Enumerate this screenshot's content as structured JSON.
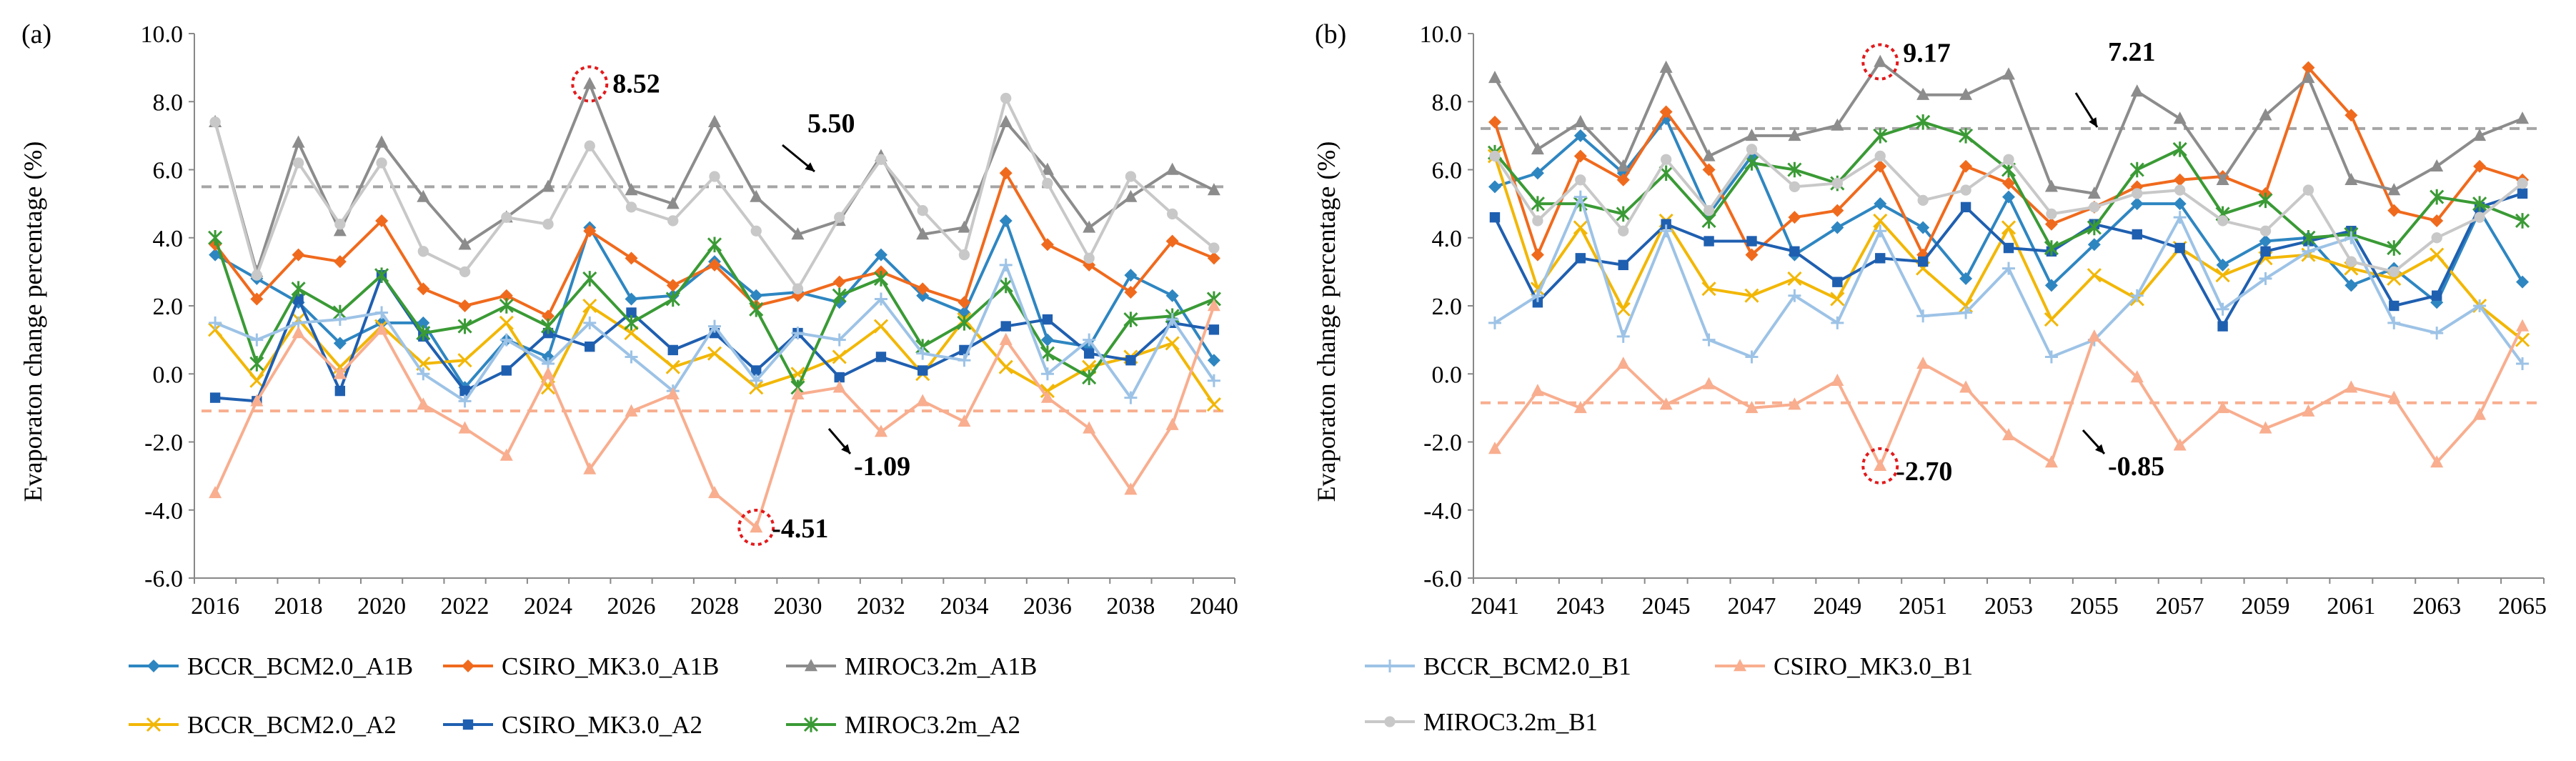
{
  "colors": {
    "BCCR_BCM2.0_A1B": "#2E86C1",
    "CSIRO_MK3.0_A1B": "#F06A1D",
    "MIROC3.2m_A1B": "#8C8C8C",
    "BCCR_BCM2.0_A2": "#F2B705",
    "CSIRO_MK3.0_A2": "#1F5FB0",
    "MIROC3.2m_A2": "#3A9A35",
    "BCCR_BCM2.0_B1": "#9DC3E6",
    "CSIRO_MK3.0_B1": "#F8AE8F",
    "MIROC3.2m_B1": "#C8C8C8",
    "ref_gray": "#A6A6A6",
    "ref_orange": "#F8AE8F",
    "highlight": "#E31A1C"
  },
  "legend": {
    "items": [
      "BCCR_BCM2.0_A1B",
      "CSIRO_MK3.0_A1B",
      "MIROC3.2m_A1B",
      "BCCR_BCM2.0_A2",
      "CSIRO_MK3.0_A2",
      "MIROC3.2m_A2"
    ],
    "items_b": [
      "BCCR_BCM2.0_B1",
      "CSIRO_MK3.0_B1",
      "MIROC3.2m_B1"
    ]
  },
  "chart_data": [
    {
      "panel_label": "(a)",
      "type": "line",
      "title": "",
      "xlabel": "",
      "ylabel": "Evaporaton change percentage  (%)",
      "ylim": [
        -6,
        10
      ],
      "yticks": [
        "10.0",
        "8.0",
        "6.0",
        "4.0",
        "2.0",
        "0.0",
        "-2.0",
        "-4.0",
        "-6.0"
      ],
      "ytick_values": [
        10,
        8,
        6,
        4,
        2,
        0,
        -2,
        -4,
        -6
      ],
      "x": [
        2016,
        2017,
        2018,
        2019,
        2020,
        2021,
        2022,
        2023,
        2024,
        2025,
        2026,
        2027,
        2028,
        2029,
        2030,
        2031,
        2032,
        2033,
        2034,
        2035,
        2036,
        2037,
        2038,
        2039,
        2040
      ],
      "xtick_labels": [
        "2016",
        "2018",
        "2020",
        "2022",
        "2024",
        "2026",
        "2028",
        "2030",
        "2032",
        "2034",
        "2036",
        "2038",
        "2040"
      ],
      "series": [
        {
          "name": "BCCR_BCM2.0_A1B",
          "marker": "diamond",
          "values": [
            3.5,
            2.8,
            2.1,
            0.9,
            1.5,
            1.5,
            -0.4,
            1.0,
            0.5,
            4.3,
            2.2,
            2.3,
            3.3,
            2.3,
            2.4,
            2.1,
            3.5,
            2.3,
            1.8,
            4.5,
            1.0,
            0.8,
            2.9,
            2.3,
            0.4
          ]
        },
        {
          "name": "CSIRO_MK3.0_A1B",
          "marker": "diamond",
          "values": [
            3.8,
            2.2,
            3.5,
            3.3,
            4.5,
            2.5,
            2.0,
            2.3,
            1.7,
            4.2,
            3.4,
            2.6,
            3.2,
            2.0,
            2.3,
            2.7,
            3.0,
            2.5,
            2.1,
            5.9,
            3.8,
            3.2,
            2.4,
            3.9,
            3.4
          ]
        },
        {
          "name": "MIROC3.2m_A1B",
          "marker": "triangle",
          "values": [
            7.4,
            3.0,
            6.8,
            4.2,
            6.8,
            5.2,
            3.8,
            4.6,
            5.5,
            8.52,
            5.4,
            5.0,
            7.4,
            5.2,
            4.1,
            4.5,
            6.4,
            4.1,
            4.3,
            7.4,
            6.0,
            4.3,
            5.2,
            6.0,
            5.4
          ]
        },
        {
          "name": "BCCR_BCM2.0_A2",
          "marker": "x",
          "values": [
            1.3,
            -0.2,
            1.6,
            0.2,
            1.4,
            0.3,
            0.4,
            1.5,
            -0.4,
            2.0,
            1.2,
            0.2,
            0.6,
            -0.4,
            0.0,
            0.5,
            1.4,
            0.0,
            1.6,
            0.2,
            -0.5,
            0.2,
            0.5,
            0.9,
            -0.9
          ]
        },
        {
          "name": "CSIRO_MK3.0_A2",
          "marker": "square",
          "values": [
            -0.7,
            -0.8,
            2.2,
            -0.5,
            2.9,
            1.1,
            -0.5,
            0.1,
            1.2,
            0.8,
            1.8,
            0.7,
            1.2,
            0.1,
            1.2,
            -0.1,
            0.5,
            0.1,
            0.7,
            1.4,
            1.6,
            0.6,
            0.4,
            1.5,
            1.3
          ]
        },
        {
          "name": "MIROC3.2m_A2",
          "marker": "star",
          "values": [
            4.0,
            0.3,
            2.5,
            1.8,
            2.9,
            1.2,
            1.4,
            2.0,
            1.4,
            2.8,
            1.5,
            2.2,
            3.8,
            1.9,
            -0.4,
            2.3,
            2.8,
            0.8,
            1.5,
            2.6,
            0.6,
            -0.1,
            1.6,
            1.7,
            2.2
          ]
        },
        {
          "name": "BCCR_BCM2.0_B1",
          "marker": "plus",
          "values": [
            1.5,
            1.0,
            1.5,
            1.6,
            1.8,
            0.0,
            -0.8,
            1.0,
            0.3,
            1.5,
            0.5,
            -0.5,
            1.4,
            -0.2,
            1.2,
            1.0,
            2.2,
            0.6,
            0.4,
            3.2,
            0.0,
            1.0,
            -0.7,
            1.6,
            -0.2
          ]
        },
        {
          "name": "CSIRO_MK3.0_B1",
          "marker": "triangle",
          "values": [
            -3.5,
            -0.8,
            1.2,
            0.0,
            1.3,
            -0.9,
            -1.6,
            -2.4,
            0.0,
            -2.8,
            -1.1,
            -0.6,
            -3.5,
            -4.51,
            -0.6,
            -0.4,
            -1.7,
            -0.8,
            -1.4,
            1.0,
            -0.7,
            -1.6,
            -3.4,
            -1.5,
            2.0
          ]
        },
        {
          "name": "MIROC3.2m_B1",
          "marker": "circle",
          "values": [
            7.4,
            2.9,
            6.2,
            4.4,
            6.2,
            3.6,
            3.0,
            4.6,
            4.4,
            6.7,
            4.9,
            4.5,
            5.8,
            4.2,
            2.5,
            4.6,
            6.3,
            4.8,
            3.5,
            8.1,
            5.6,
            3.4,
            5.8,
            4.7,
            3.7
          ]
        }
      ],
      "ref_lines": [
        {
          "value": 5.5,
          "label": "5.50",
          "color_key": "ref_gray"
        },
        {
          "value": -1.09,
          "label": "-1.09",
          "color_key": "ref_orange"
        }
      ],
      "annotations": [
        {
          "label": "8.52",
          "x": 2025,
          "y": 8.52
        },
        {
          "label": "-4.51",
          "x": 2029,
          "y": -4.51
        }
      ]
    },
    {
      "panel_label": "(b)",
      "type": "line",
      "title": "",
      "xlabel": "",
      "ylabel": "Evaporaton change percentage  (%)",
      "ylim": [
        -6,
        10
      ],
      "yticks": [
        "10.0",
        "8.0",
        "6.0",
        "4.0",
        "2.0",
        "0.0",
        "-2.0",
        "-4.0",
        "-6.0"
      ],
      "ytick_values": [
        10,
        8,
        6,
        4,
        2,
        0,
        -2,
        -4,
        -6
      ],
      "x": [
        2041,
        2042,
        2043,
        2044,
        2045,
        2046,
        2047,
        2048,
        2049,
        2050,
        2051,
        2052,
        2053,
        2054,
        2055,
        2056,
        2057,
        2058,
        2059,
        2060,
        2061,
        2062,
        2063,
        2064,
        2065
      ],
      "xtick_labels": [
        "2041",
        "2043",
        "2045",
        "2047",
        "2049",
        "2051",
        "2053",
        "2055",
        "2057",
        "2059",
        "2061",
        "2063",
        "2065"
      ],
      "series": [
        {
          "name": "BCCR_BCM2.0_A1B",
          "marker": "diamond",
          "values": [
            5.5,
            5.9,
            7.0,
            5.9,
            7.5,
            4.7,
            6.4,
            3.5,
            4.3,
            5.0,
            4.3,
            2.8,
            5.2,
            2.6,
            3.8,
            5.0,
            5.0,
            3.2,
            3.9,
            4.0,
            2.6,
            3.1,
            2.1,
            4.8,
            2.7
          ]
        },
        {
          "name": "CSIRO_MK3.0_A1B",
          "marker": "diamond",
          "values": [
            7.4,
            3.5,
            6.4,
            5.7,
            7.7,
            6.0,
            3.5,
            4.6,
            4.8,
            6.1,
            3.5,
            6.1,
            5.6,
            4.4,
            4.9,
            5.5,
            5.7,
            5.8,
            5.3,
            9.0,
            7.6,
            4.8,
            4.5,
            6.1,
            5.7
          ]
        },
        {
          "name": "MIROC3.2m_A1B",
          "marker": "triangle",
          "values": [
            8.7,
            6.6,
            7.4,
            6.1,
            9.0,
            6.4,
            7.0,
            7.0,
            7.3,
            9.17,
            8.2,
            8.2,
            8.8,
            5.5,
            5.3,
            8.3,
            7.5,
            5.7,
            7.6,
            8.7,
            5.7,
            5.4,
            6.1,
            7.0,
            7.5
          ]
        },
        {
          "name": "BCCR_BCM2.0_A2",
          "marker": "x",
          "values": [
            6.4,
            2.5,
            4.3,
            1.9,
            4.5,
            2.5,
            2.3,
            2.8,
            2.2,
            4.5,
            3.1,
            2.0,
            4.3,
            1.6,
            2.9,
            2.2,
            3.7,
            2.9,
            3.4,
            3.5,
            3.1,
            2.8,
            3.5,
            2.0,
            1.0
          ]
        },
        {
          "name": "CSIRO_MK3.0_A2",
          "marker": "square",
          "values": [
            4.6,
            2.1,
            3.4,
            3.2,
            4.4,
            3.9,
            3.9,
            3.6,
            2.7,
            3.4,
            3.3,
            4.9,
            3.7,
            3.6,
            4.4,
            4.1,
            3.7,
            1.4,
            3.6,
            3.9,
            4.2,
            2.0,
            2.3,
            4.9,
            5.3
          ]
        },
        {
          "name": "MIROC3.2m_A2",
          "marker": "star",
          "values": [
            6.5,
            5.0,
            5.0,
            4.7,
            5.9,
            4.5,
            6.2,
            6.0,
            5.6,
            7.0,
            7.4,
            7.0,
            6.0,
            3.7,
            4.3,
            6.0,
            6.6,
            4.7,
            5.1,
            4.0,
            4.1,
            3.7,
            5.2,
            5.0,
            4.5
          ]
        },
        {
          "name": "BCCR_BCM2.0_B1",
          "marker": "plus",
          "values": [
            1.5,
            2.3,
            5.2,
            1.1,
            4.2,
            1.0,
            0.5,
            2.3,
            1.5,
            4.2,
            1.7,
            1.8,
            3.1,
            0.5,
            1.0,
            2.3,
            4.6,
            1.9,
            2.8,
            3.6,
            4.0,
            1.5,
            1.2,
            2.0,
            0.3
          ]
        },
        {
          "name": "CSIRO_MK3.0_B1",
          "marker": "triangle",
          "values": [
            -2.2,
            -0.5,
            -1.0,
            0.3,
            -0.9,
            -0.3,
            -1.0,
            -0.9,
            -0.2,
            -2.7,
            0.3,
            -0.4,
            -1.8,
            -2.6,
            1.1,
            -0.1,
            -2.1,
            -1.0,
            -1.6,
            -1.1,
            -0.4,
            -0.7,
            -2.6,
            -1.2,
            1.4
          ]
        },
        {
          "name": "MIROC3.2m_B1",
          "marker": "circle",
          "values": [
            6.4,
            4.5,
            5.7,
            4.2,
            6.3,
            4.8,
            6.6,
            5.5,
            5.6,
            6.4,
            5.1,
            5.4,
            6.3,
            4.7,
            4.9,
            5.3,
            5.4,
            4.5,
            4.2,
            5.4,
            3.3,
            3.0,
            4.0,
            4.6,
            5.6
          ]
        }
      ],
      "ref_lines": [
        {
          "value": 7.21,
          "label": "7.21",
          "color_key": "ref_gray"
        },
        {
          "value": -0.85,
          "label": "-0.85",
          "color_key": "ref_orange"
        }
      ],
      "annotations": [
        {
          "label": "9.17",
          "x": 2050,
          "y": 9.17
        },
        {
          "label": "-2.70",
          "x": 2050,
          "y": -2.7
        }
      ]
    }
  ]
}
